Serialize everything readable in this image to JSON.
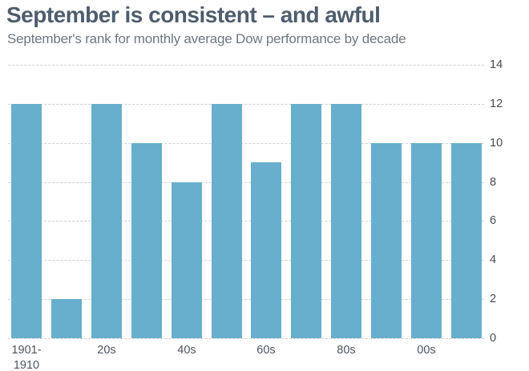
{
  "header": {
    "title": "September is consistent – and awful",
    "subtitle": "September's rank for monthly average Dow performance by decade"
  },
  "chart_data": {
    "type": "bar",
    "title": "September is consistent – and awful",
    "subtitle": "September's rank for monthly average Dow performance by decade",
    "categories": [
      "1901-1910",
      "",
      "20s",
      "",
      "40s",
      "",
      "60s",
      "",
      "80s",
      "",
      "00s",
      ""
    ],
    "values": [
      12,
      2,
      12,
      10,
      8,
      12,
      9,
      12,
      12,
      10,
      10,
      10
    ],
    "x_tick_labels": [
      {
        "bar_index": 0,
        "lines": [
          "1901-",
          "1910"
        ]
      },
      {
        "bar_index": 2,
        "lines": [
          "20s"
        ]
      },
      {
        "bar_index": 4,
        "lines": [
          "40s"
        ]
      },
      {
        "bar_index": 6,
        "lines": [
          "60s"
        ]
      },
      {
        "bar_index": 8,
        "lines": [
          "80s"
        ]
      },
      {
        "bar_index": 10,
        "lines": [
          "00s"
        ]
      }
    ],
    "y_ticks": [
      0,
      2,
      4,
      6,
      8,
      10,
      12,
      14
    ],
    "ylim": [
      0,
      14
    ],
    "xlabel": "",
    "ylabel": "",
    "grid": "horizontal-dashed",
    "y_axis_side": "right",
    "legend": null
  },
  "colors": {
    "bar": "#67afcc",
    "title": "#4e5d6d",
    "subtitle": "#6e7681",
    "y_tick_label": "#434b52",
    "x_tick_label": "#4c5560",
    "gridline": "#d2d2d2",
    "background": "#ffffff"
  }
}
